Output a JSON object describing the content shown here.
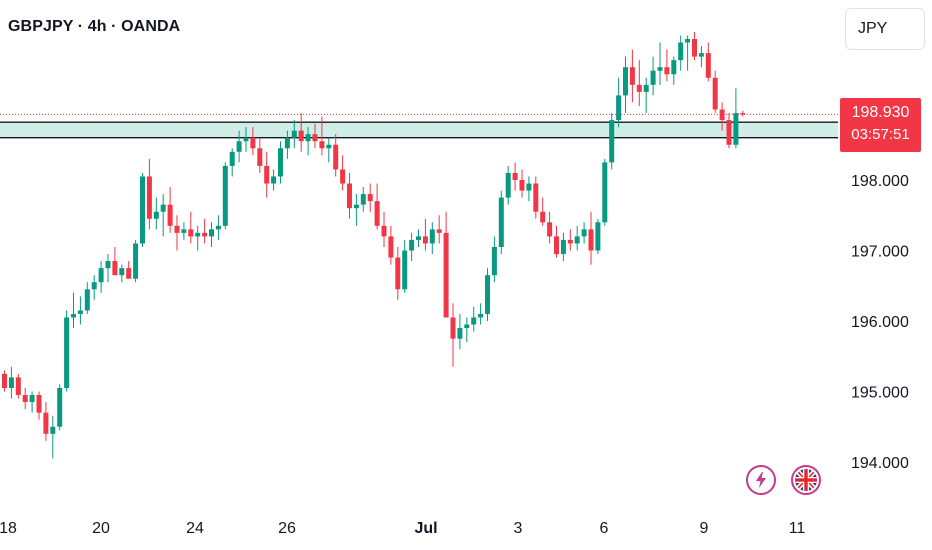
{
  "header": {
    "symbol_title": "GBPJPY · 4h · OANDA"
  },
  "toolbar": {
    "currency_label": "JPY"
  },
  "price_label": {
    "last_price": "198.930",
    "countdown": "03:57:51"
  },
  "icons": {
    "lightning": "lightning-icon",
    "flag": "uk-flag-icon"
  },
  "colors": {
    "up": "#089981",
    "down": "#f23645",
    "zone_fill": "#d1ede7",
    "zone_line": "#131722",
    "badge": "#c23b8f"
  },
  "chart_data": {
    "type": "candlestick",
    "y_ticks": [
      "194.000",
      "195.000",
      "196.000",
      "197.000",
      "198.000"
    ],
    "x_ticks": [
      "18",
      "20",
      "24",
      "26",
      "Jul",
      "3",
      "6",
      "9",
      "11"
    ],
    "ylim": [
      193.3,
      200.5
    ],
    "support_zone": {
      "low": 198.6,
      "high": 198.82
    },
    "last_price": 198.93,
    "candles": [
      [
        195.25,
        195.3,
        195.0,
        195.05
      ],
      [
        195.05,
        195.35,
        194.9,
        195.2
      ],
      [
        195.2,
        195.25,
        194.9,
        194.95
      ],
      [
        194.95,
        195.05,
        194.75,
        194.85
      ],
      [
        194.85,
        195.0,
        194.7,
        194.95
      ],
      [
        194.95,
        195.0,
        194.6,
        194.7
      ],
      [
        194.7,
        194.85,
        194.3,
        194.4
      ],
      [
        194.4,
        194.65,
        194.05,
        194.5
      ],
      [
        194.5,
        195.1,
        194.45,
        195.05
      ],
      [
        195.05,
        196.15,
        195.0,
        196.05
      ],
      [
        196.05,
        196.4,
        195.9,
        196.1
      ],
      [
        196.1,
        196.35,
        195.95,
        196.15
      ],
      [
        196.15,
        196.55,
        196.1,
        196.45
      ],
      [
        196.45,
        196.65,
        196.3,
        196.55
      ],
      [
        196.55,
        196.85,
        196.4,
        196.75
      ],
      [
        196.75,
        196.95,
        196.55,
        196.85
      ],
      [
        196.85,
        197.05,
        196.7,
        196.65
      ],
      [
        196.65,
        196.8,
        196.55,
        196.75
      ],
      [
        196.75,
        196.85,
        196.6,
        196.6
      ],
      [
        196.6,
        197.15,
        196.55,
        197.1
      ],
      [
        197.1,
        198.1,
        197.05,
        198.05
      ],
      [
        198.05,
        198.3,
        197.3,
        197.45
      ],
      [
        197.45,
        197.75,
        197.3,
        197.55
      ],
      [
        197.55,
        197.8,
        197.2,
        197.65
      ],
      [
        197.65,
        197.9,
        197.25,
        197.35
      ],
      [
        197.35,
        197.5,
        197.0,
        197.25
      ],
      [
        197.25,
        197.4,
        197.15,
        197.3
      ],
      [
        197.3,
        197.55,
        197.1,
        197.2
      ],
      [
        197.2,
        197.35,
        197.0,
        197.25
      ],
      [
        197.25,
        197.45,
        197.1,
        197.2
      ],
      [
        197.2,
        197.4,
        197.05,
        197.3
      ],
      [
        197.3,
        197.5,
        197.15,
        197.35
      ],
      [
        197.35,
        198.25,
        197.3,
        198.2
      ],
      [
        198.2,
        198.45,
        198.05,
        198.4
      ],
      [
        198.4,
        198.7,
        198.25,
        198.55
      ],
      [
        198.55,
        198.75,
        198.4,
        198.6
      ],
      [
        198.6,
        198.75,
        198.35,
        198.45
      ],
      [
        198.45,
        198.6,
        198.1,
        198.2
      ],
      [
        198.2,
        198.4,
        197.75,
        197.95
      ],
      [
        197.95,
        198.15,
        197.85,
        198.05
      ],
      [
        198.05,
        198.55,
        197.95,
        198.45
      ],
      [
        198.45,
        198.7,
        198.3,
        198.6
      ],
      [
        198.6,
        198.85,
        198.45,
        198.7
      ],
      [
        198.7,
        198.95,
        198.4,
        198.55
      ],
      [
        198.55,
        198.75,
        198.35,
        198.65
      ],
      [
        198.65,
        198.8,
        198.45,
        198.55
      ],
      [
        198.55,
        198.9,
        198.35,
        198.45
      ],
      [
        198.45,
        198.6,
        198.25,
        198.5
      ],
      [
        198.5,
        198.65,
        198.05,
        198.15
      ],
      [
        198.15,
        198.35,
        197.85,
        197.95
      ],
      [
        197.95,
        198.1,
        197.45,
        197.6
      ],
      [
        197.6,
        197.8,
        197.35,
        197.65
      ],
      [
        197.65,
        197.9,
        197.55,
        197.8
      ],
      [
        197.8,
        197.95,
        197.55,
        197.7
      ],
      [
        197.7,
        197.95,
        197.3,
        197.35
      ],
      [
        197.35,
        197.55,
        197.05,
        197.2
      ],
      [
        197.2,
        197.35,
        196.8,
        196.9
      ],
      [
        196.9,
        197.05,
        196.3,
        196.45
      ],
      [
        196.45,
        197.15,
        196.4,
        197.0
      ],
      [
        197.0,
        197.25,
        196.85,
        197.15
      ],
      [
        197.15,
        197.3,
        197.05,
        197.2
      ],
      [
        197.2,
        197.45,
        197.0,
        197.1
      ],
      [
        197.1,
        197.4,
        196.95,
        197.3
      ],
      [
        197.3,
        197.5,
        197.1,
        197.25
      ],
      [
        197.25,
        197.55,
        196.05,
        196.05
      ],
      [
        196.05,
        196.25,
        195.35,
        195.75
      ],
      [
        195.75,
        196.1,
        195.6,
        195.9
      ],
      [
        195.9,
        196.05,
        195.7,
        195.95
      ],
      [
        195.95,
        196.2,
        195.85,
        196.05
      ],
      [
        196.05,
        196.25,
        195.95,
        196.1
      ],
      [
        196.1,
        196.75,
        196.0,
        196.65
      ],
      [
        196.65,
        197.2,
        196.55,
        197.05
      ],
      [
        197.05,
        197.85,
        196.95,
        197.75
      ],
      [
        197.75,
        198.2,
        197.65,
        198.1
      ],
      [
        198.1,
        198.25,
        197.85,
        198.0
      ],
      [
        198.0,
        198.15,
        197.75,
        197.85
      ],
      [
        197.85,
        198.05,
        197.7,
        197.95
      ],
      [
        197.95,
        198.05,
        197.45,
        197.55
      ],
      [
        197.55,
        197.75,
        197.35,
        197.4
      ],
      [
        197.4,
        197.55,
        197.1,
        197.2
      ],
      [
        197.2,
        197.35,
        196.9,
        196.95
      ],
      [
        196.95,
        197.25,
        196.85,
        197.15
      ],
      [
        197.15,
        197.3,
        197.0,
        197.1
      ],
      [
        197.1,
        197.35,
        197.0,
        197.2
      ],
      [
        197.2,
        197.4,
        197.1,
        197.3
      ],
      [
        197.3,
        197.55,
        196.8,
        197.0
      ],
      [
        197.0,
        197.45,
        196.95,
        197.4
      ],
      [
        197.4,
        198.3,
        197.35,
        198.25
      ],
      [
        198.25,
        198.95,
        198.15,
        198.85
      ],
      [
        198.85,
        199.45,
        198.75,
        199.2
      ],
      [
        199.2,
        199.75,
        198.95,
        199.6
      ],
      [
        199.6,
        199.85,
        199.1,
        199.35
      ],
      [
        199.35,
        199.7,
        199.05,
        199.25
      ],
      [
        199.25,
        199.45,
        198.95,
        199.35
      ],
      [
        199.35,
        199.75,
        199.2,
        199.55
      ],
      [
        199.55,
        199.95,
        199.35,
        199.6
      ],
      [
        199.6,
        199.85,
        199.4,
        199.5
      ],
      [
        199.5,
        199.75,
        199.35,
        199.7
      ],
      [
        199.7,
        200.05,
        199.55,
        199.95
      ],
      [
        199.95,
        200.05,
        199.55,
        200.0
      ],
      [
        200.0,
        200.1,
        199.7,
        199.75
      ],
      [
        199.75,
        199.9,
        199.6,
        199.8
      ],
      [
        199.8,
        199.95,
        199.4,
        199.45
      ],
      [
        199.45,
        199.55,
        198.95,
        199.0
      ],
      [
        199.0,
        199.1,
        198.7,
        198.85
      ],
      [
        198.85,
        198.95,
        198.45,
        198.5
      ],
      [
        198.5,
        199.3,
        198.45,
        198.95
      ],
      [
        198.95,
        198.98,
        198.9,
        198.93
      ]
    ]
  }
}
